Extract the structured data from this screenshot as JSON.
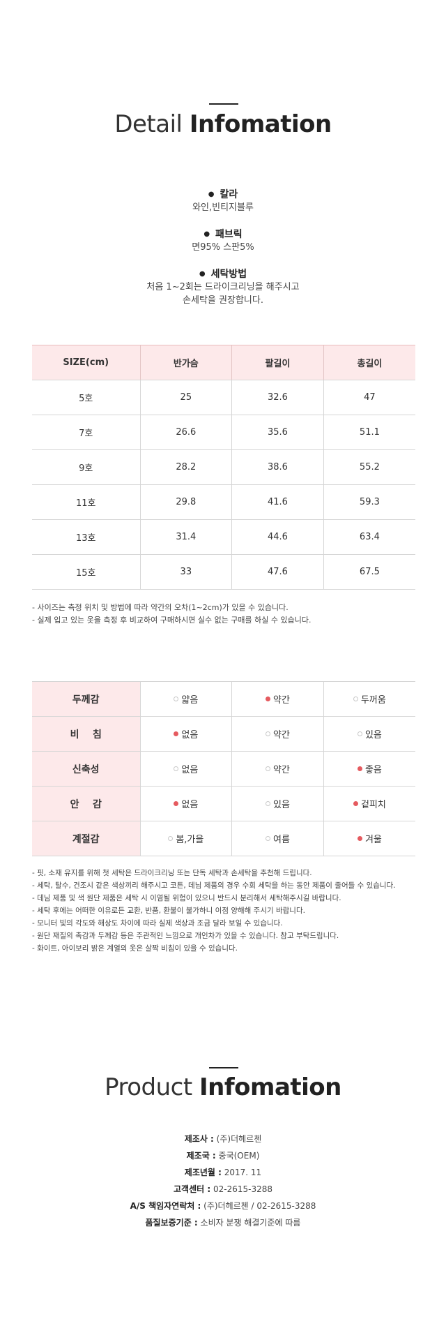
{
  "detail_heading": {
    "thin": "Detail",
    "bold": "Infomation"
  },
  "specs": [
    {
      "title": "칼라",
      "lines": [
        "와인,빈티지블루"
      ]
    },
    {
      "title": "패브릭",
      "lines": [
        "면95% 스판5%"
      ]
    },
    {
      "title": "세탁방법",
      "lines": [
        "처음 1~2회는 드라이크리닝을 해주시고",
        "손세탁을 권장합니다."
      ]
    }
  ],
  "size_table": {
    "headers": [
      "SIZE(cm)",
      "반가슴",
      "팔길이",
      "총길이"
    ],
    "rows": [
      [
        "5호",
        "25",
        "32.6",
        "47"
      ],
      [
        "7호",
        "26.6",
        "35.6",
        "51.1"
      ],
      [
        "9호",
        "28.2",
        "38.6",
        "55.2"
      ],
      [
        "11호",
        "29.8",
        "41.6",
        "59.3"
      ],
      [
        "13호",
        "31.4",
        "44.6",
        "63.4"
      ],
      [
        "15호",
        "33",
        "47.6",
        "67.5"
      ]
    ]
  },
  "size_notes": [
    "- 사이즈는 측정 위치 및 방법에 따라 약간의 오차(1~2cm)가 있을 수 있습니다.",
    "- 실제 입고 있는 옷을 측정 후 비교하여 구매하시면 실수 없는 구매를 하실 수 있습니다."
  ],
  "feel_table": [
    {
      "label": "두께감",
      "options": [
        {
          "text": "얇음",
          "selected": false
        },
        {
          "text": "약간",
          "selected": true
        },
        {
          "text": "두꺼움",
          "selected": false
        }
      ]
    },
    {
      "label": "비    침",
      "options": [
        {
          "text": "없음",
          "selected": true
        },
        {
          "text": "약간",
          "selected": false
        },
        {
          "text": "있음",
          "selected": false
        }
      ]
    },
    {
      "label": "신축성",
      "options": [
        {
          "text": "없음",
          "selected": false
        },
        {
          "text": "약간",
          "selected": false
        },
        {
          "text": "좋음",
          "selected": true
        }
      ]
    },
    {
      "label": "안    감",
      "options": [
        {
          "text": "없음",
          "selected": true
        },
        {
          "text": "있음",
          "selected": false
        },
        {
          "text": "겉피치",
          "selected": true
        }
      ]
    },
    {
      "label": "계절감",
      "options": [
        {
          "text": "봄,가을",
          "selected": false
        },
        {
          "text": "여름",
          "selected": false
        },
        {
          "text": "겨울",
          "selected": true
        }
      ]
    }
  ],
  "care_notes": [
    "- 핏, 소재 유지를 위해 첫 세탁은 드라이크리닝 또는 단독 세탁과 손세탁을 추천해 드립니다.",
    "- 세탁, 탈수, 건조시 같은 색상끼리 해주시고 코튼, 데님 제품의 경우 수회 세탁을 하는 동안 제품이 줄어들 수 있습니다.",
    "- 데님 제품 및 색 원단 제품은 세탁 시 이염될 위험이 있으니 반드시 분리해서 세탁해주시길 바랍니다.",
    "- 세탁 후에는 어떠한 이유로든 교환, 반품, 환불이 불가하니 이점 양해해 주시기 바랍니다.",
    "- 모니터 빛의 각도와 해상도 차이에 따라 실제 색상과 조금 달라 보일 수 있습니다.",
    "- 원단 재질의 촉감과 두께감 등은 주관적인 느낌으로 개인차가 있을 수 있습니다. 참고 부탁드립니다.",
    "- 화이트, 아이보리 밝은 계열의 옷은 살짝 비침이 있을 수 있습니다."
  ],
  "product_heading": {
    "thin": "Product",
    "bold": "Infomation"
  },
  "product_info": [
    {
      "key": "제조사 :",
      "value": " (주)더헤르첸"
    },
    {
      "key": "제조국 :",
      "value": " 중국(OEM)"
    },
    {
      "key": "제조년월 :",
      "value": " 2017. 11"
    },
    {
      "key": "고객센터 :",
      "value": " 02-2615-3288"
    },
    {
      "key": "A/S 책임자연락처 :",
      "value": " (주)더헤르첸 / 02-2615-3288"
    },
    {
      "key": "품질보증기준 :",
      "value": " 소비자 분쟁 해결기준에 따름"
    }
  ],
  "colors": {
    "accent": "#e55a5f",
    "header_bg": "#fde9ea"
  }
}
